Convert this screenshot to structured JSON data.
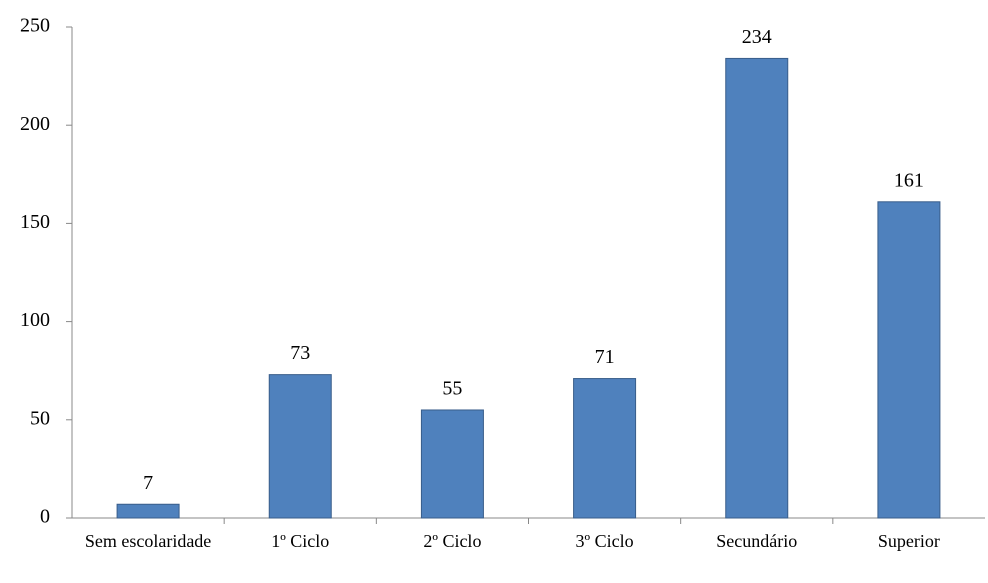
{
  "chart_data": {
    "type": "bar",
    "categories": [
      "Sem escolaridade",
      "1º Ciclo",
      "2º Ciclo",
      "3º Ciclo",
      "Secundário",
      "Superior"
    ],
    "values": [
      7,
      73,
      55,
      71,
      234,
      161
    ],
    "color": "#4f81bd",
    "ylim": [
      0,
      250
    ],
    "yticks": [
      0,
      50,
      100,
      150,
      200,
      250
    ],
    "grid": false
  }
}
